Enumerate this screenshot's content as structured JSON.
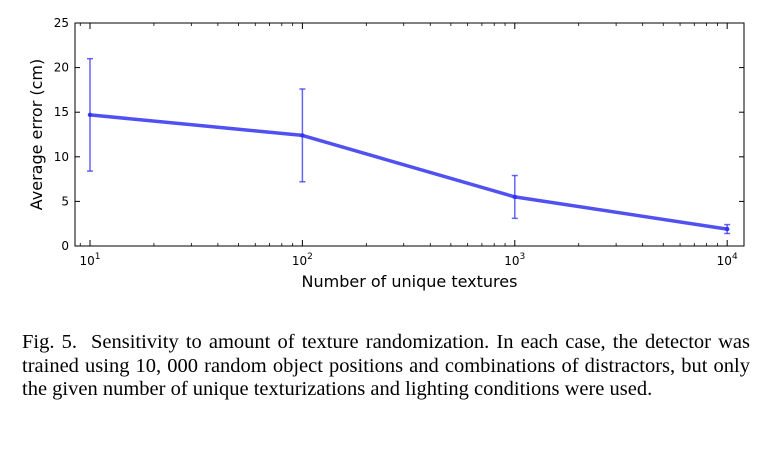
{
  "chart_data": {
    "type": "line",
    "x_scale": "log",
    "xlabel": "Number of unique textures",
    "ylabel": "Average error (cm)",
    "xlim": [
      8.5,
      12000
    ],
    "ylim": [
      0,
      25
    ],
    "grid": false,
    "x_ticks": [
      {
        "value": 10,
        "base": "10",
        "exp": "1"
      },
      {
        "value": 100,
        "base": "10",
        "exp": "2"
      },
      {
        "value": 1000,
        "base": "10",
        "exp": "3"
      },
      {
        "value": 10000,
        "base": "10",
        "exp": "4"
      }
    ],
    "y_ticks": [
      0,
      5,
      10,
      15,
      20,
      25
    ],
    "series": [
      {
        "color": "#3333ee",
        "x": [
          10,
          100,
          1000,
          10000
        ],
        "y": [
          14.7,
          12.4,
          5.5,
          1.9
        ],
        "err_low": [
          8.4,
          7.2,
          3.1,
          1.4
        ],
        "err_high": [
          21.0,
          17.6,
          7.9,
          2.4
        ]
      }
    ]
  },
  "caption": {
    "label": "Fig. 5.",
    "text": "Sensitivity to amount of texture randomization. In each case, the detector was trained using 10, 000 random object positions and combinations of distractors, but only the given number of unique texturizations and lighting conditions were used."
  }
}
